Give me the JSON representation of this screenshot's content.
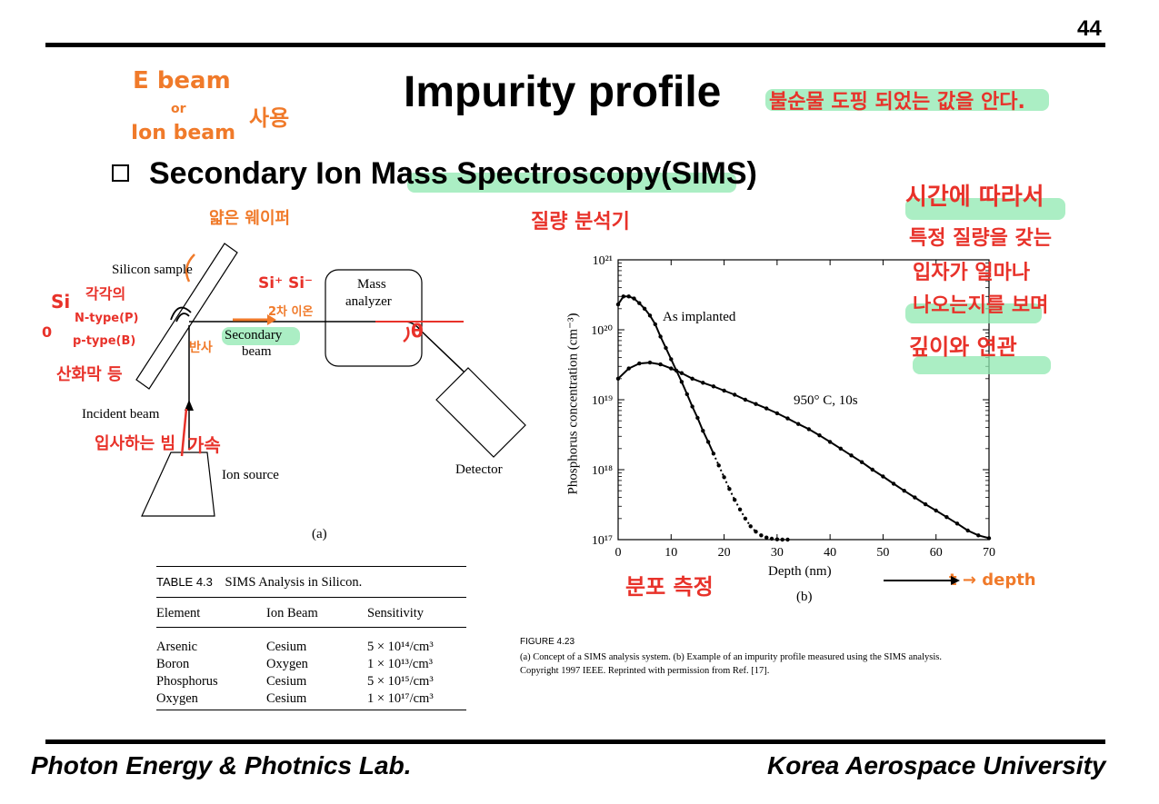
{
  "page": {
    "number": "44",
    "title": "Impurity profile"
  },
  "section": {
    "bullet": "Secondary Ion Mass Spectroscopy(SIMS)"
  },
  "diagram": {
    "silicon_sample": "Silicon sample",
    "mass_analyzer_line1": "Mass",
    "mass_analyzer_line2": "analyzer",
    "secondary_beam_line1": "Secondary",
    "secondary_beam_line2": "beam",
    "incident_beam": "Incident beam",
    "ion_source": "Ion source",
    "detector": "Detector",
    "caption": "(a)"
  },
  "chart_data": {
    "type": "scatter",
    "xlabel": "Depth (nm)",
    "ylabel": "Phosphorus concentration (cm⁻³)",
    "ylog": true,
    "xlim": [
      0,
      70
    ],
    "ylim": [
      1e+17,
      1e+21
    ],
    "x_ticks": [
      "0",
      "10",
      "20",
      "30",
      "40",
      "50",
      "60",
      "70"
    ],
    "y_ticks": [
      "10¹⁷",
      "10¹⁸",
      "10¹⁹",
      "10²⁰",
      "10²¹"
    ],
    "caption": "(b)",
    "series": [
      {
        "name": "As implanted",
        "x": [
          0,
          1,
          2,
          3,
          4,
          5,
          6,
          7,
          8,
          9,
          10,
          11,
          12,
          13,
          14,
          15,
          16,
          17,
          18,
          19,
          20,
          21,
          22,
          23,
          24,
          25,
          26,
          27,
          28,
          29,
          30,
          31,
          32
        ],
        "y": [
          2.3e+20,
          3e+20,
          3e+20,
          2.8e+20,
          2.4e+20,
          2e+20,
          1.6e+20,
          1.2e+20,
          8e+19,
          5.5e+19,
          3.8e+19,
          2.6e+19,
          1.8e+19,
          1.2e+19,
          8e+18,
          5.5e+18,
          3.6e+18,
          2.5e+18,
          1.7e+18,
          1.15e+18,
          7.8e+17,
          5.3e+17,
          3.7e+17,
          2.7e+17,
          2e+17,
          1.55e+17,
          1.3e+17,
          1.15e+17,
          1.07e+17,
          1.03e+17,
          1.01e+17,
          1e+17,
          1e+17
        ]
      },
      {
        "name": "950°C, 10s",
        "x": [
          0,
          2,
          4,
          6,
          8,
          10,
          12,
          14,
          16,
          18,
          20,
          22,
          24,
          26,
          28,
          30,
          32,
          34,
          36,
          38,
          40,
          42,
          44,
          46,
          48,
          50,
          52,
          54,
          56,
          58,
          60,
          62,
          64,
          66,
          68,
          70
        ],
        "y": [
          2e+19,
          2.8e+19,
          3.3e+19,
          3.4e+19,
          3.2e+19,
          2.8e+19,
          2.4e+19,
          2e+19,
          1.75e+19,
          1.55e+19,
          1.35e+19,
          1.18e+19,
          1e+19,
          8.7e+18,
          7.5e+18,
          6.4e+18,
          5.4e+18,
          4.5e+18,
          3.8e+18,
          3.1e+18,
          2.5e+18,
          2e+18,
          1.6e+18,
          1.28e+18,
          1e+18,
          8e+17,
          6.3e+17,
          5e+17,
          4e+17,
          3.2e+17,
          2.6e+17,
          2.1e+17,
          1.7e+17,
          1.35e+17,
          1.15e+17,
          1.05e+17
        ]
      }
    ],
    "annotations": [
      "As implanted",
      "950° C, 10s"
    ]
  },
  "table": {
    "title": "TABLE 4.3",
    "title_text": "SIMS Analysis in Silicon.",
    "headers": [
      "Element",
      "Ion Beam",
      "Sensitivity"
    ],
    "rows": [
      [
        "Arsenic",
        "Cesium",
        "5 × 10¹⁴/cm³"
      ],
      [
        "Boron",
        "Oxygen",
        "1 × 10¹³/cm³"
      ],
      [
        "Phosphorus",
        "Cesium",
        "5 × 10¹⁵/cm³"
      ],
      [
        "Oxygen",
        "Cesium",
        "1 × 10¹⁷/cm³"
      ]
    ]
  },
  "figure": {
    "label": "FIGURE 4.23",
    "caption_line1": "(a) Concept of a SIMS analysis system. (b) Example of an impurity profile measured using the SIMS analysis.",
    "caption_line2": "Copyright 1997 IEEE. Reprinted with permission from Ref. [17]."
  },
  "annotations": {
    "e_beam": "E beam",
    "or": "or",
    "ion_beam": "Ion beam",
    "use": "사용",
    "title_note": "불순물 도핑 되었는 값을 안다.",
    "thin_foil": "얇은 웨이퍼",
    "si": "Si",
    "zero": "0",
    "n_type": "N-type(P)",
    "p_type": "p-type(B)",
    "oxide": "산화막 등",
    "sample_note": "각각의",
    "si_ions": "Si⁺ Si⁻",
    "secondary_ion": "2차 이온",
    "reflection": "반사",
    "incident_note": "입사하는 빔",
    "accel": "가속",
    "mass_analyzer_note": "질량 분석기",
    "angle": "θ",
    "time_note_1": "시간에 따라서",
    "time_note_2": "특정 질량을 갖는",
    "time_note_3": "입자가 얼마나",
    "time_note_4": "나오는지를 보며",
    "time_note_5": "깊이와 연관",
    "distribution": "분포 측정",
    "t_depth": "t → depth"
  },
  "footer": {
    "left": "Photon Energy & Photnics Lab.",
    "right": "Korea Aerospace University"
  }
}
